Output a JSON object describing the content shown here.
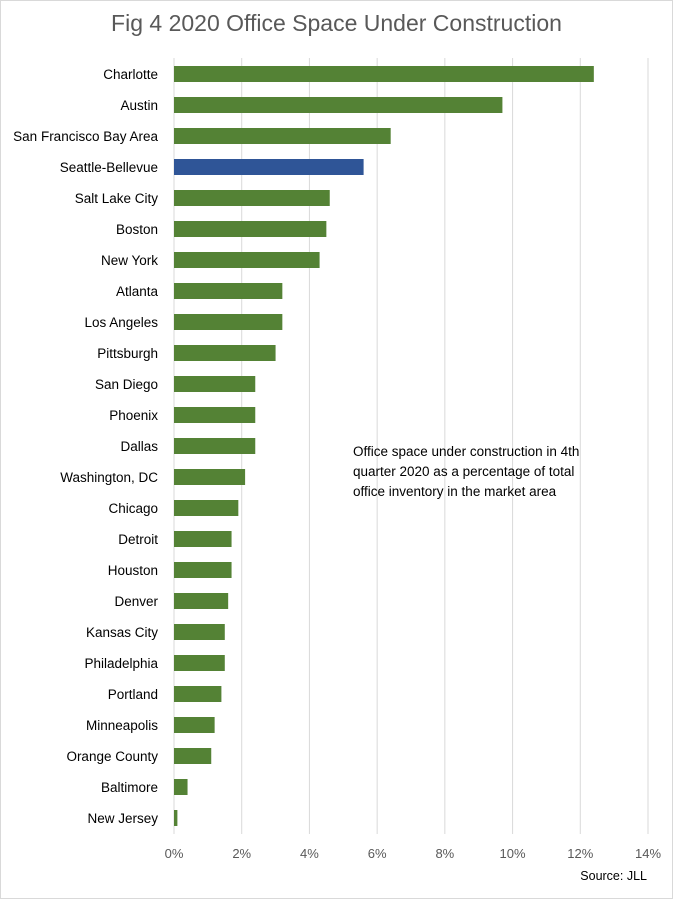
{
  "chart_data": {
    "type": "bar",
    "orientation": "horizontal",
    "title": "Fig 4 2020 Office Space Under Construction",
    "categories": [
      "Charlotte",
      "Austin",
      "San Francisco Bay Area",
      "Seattle-Bellevue",
      "Salt Lake City",
      "Boston",
      "New York",
      "Atlanta",
      "Los Angeles",
      "Pittsburgh",
      "San Diego",
      "Phoenix",
      "Dallas",
      "Washington, DC",
      "Chicago",
      "Detroit",
      "Houston",
      "Denver",
      "Kansas City",
      "Philadelphia",
      "Portland",
      "Minneapolis",
      "Orange County",
      "Baltimore",
      "New Jersey"
    ],
    "values": [
      12.4,
      9.7,
      6.4,
      5.6,
      4.6,
      4.5,
      4.3,
      3.2,
      3.2,
      3.0,
      2.4,
      2.4,
      2.4,
      2.1,
      1.9,
      1.7,
      1.7,
      1.6,
      1.5,
      1.5,
      1.4,
      1.2,
      1.1,
      0.4,
      0.1
    ],
    "highlight_category": "Seattle-Bellevue",
    "xlim": [
      0,
      14
    ],
    "x_ticks": [
      0,
      2,
      4,
      6,
      8,
      10,
      12,
      14
    ],
    "x_tick_labels": [
      "0%",
      "2%",
      "4%",
      "6%",
      "8%",
      "10%",
      "12%",
      "14%"
    ],
    "xlabel": "",
    "ylabel": "",
    "grid": "vertical",
    "colors": {
      "default": "#548235",
      "highlight": "#2f5597",
      "grid": "#d9d9d9"
    },
    "annotation": "Office space under construction in 4th quarter 2020 as a percentage of total office inventory in the market area",
    "source": "Source: JLL"
  }
}
